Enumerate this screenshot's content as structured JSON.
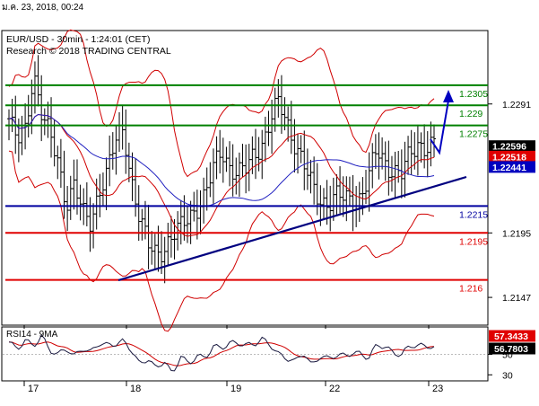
{
  "header": {
    "timestamp": "ม.ค. 23, 2018, 00:24"
  },
  "chart_data": {
    "type": "candlestick",
    "title": "EUR/USD - 30min - 1:24:01 (CET)",
    "subtitle": "Research © 2018 TRADING CENTRAL",
    "y_axis": {
      "range": [
        1.2127,
        1.2345
      ],
      "ticks": [
        "1.2291",
        "1.2195",
        "1.2147"
      ]
    },
    "x_axis": {
      "ticks": [
        "17",
        "18",
        "19",
        "22",
        "23"
      ]
    },
    "levels": [
      {
        "label": "1.2305",
        "value": 1.2305,
        "color": "#008000"
      },
      {
        "label": "1.229",
        "value": 1.229,
        "color": "#008000"
      },
      {
        "label": "1.2275",
        "value": 1.2275,
        "color": "#008000"
      },
      {
        "label": "1.2215",
        "value": 1.2215,
        "color": "#0000a0"
      },
      {
        "label": "1.2195",
        "value": 1.2195,
        "color": "#e00000"
      },
      {
        "label": "1.216",
        "value": 1.216,
        "color": "#e00000"
      }
    ],
    "price_tags": [
      {
        "label": "1.22596",
        "value": 1.22596,
        "bg": "#000000",
        "fg": "#ffffff"
      },
      {
        "label": "1.22518",
        "value": 1.22518,
        "bg": "#e00000",
        "fg": "#ffffff"
      },
      {
        "label": "1.22441",
        "value": 1.22441,
        "bg": "#0000c0",
        "fg": "#ffffff"
      }
    ],
    "trendline": {
      "from": [
        "Jan 17",
        1.2178
      ],
      "to": [
        "Jan 23",
        1.2242
      ]
    },
    "price_path": [
      1.228,
      1.2262,
      1.2272,
      1.2316,
      1.2284,
      1.2266,
      1.2248,
      1.2218,
      1.2232,
      1.2208,
      1.2202,
      1.2228,
      1.224,
      1.2262,
      1.2272,
      1.2235,
      1.2205,
      1.2185,
      1.218,
      1.2185,
      1.2192,
      1.2198,
      1.2208,
      1.2215,
      1.2222,
      1.2242,
      1.2258,
      1.2245,
      1.2238,
      1.2242,
      1.2255,
      1.2262,
      1.2278,
      1.2292,
      1.2278,
      1.2262,
      1.2246,
      1.223,
      1.222,
      1.2218,
      1.2222,
      1.222,
      1.222,
      1.2222,
      1.2236,
      1.2256,
      1.2248,
      1.2242,
      1.2238,
      1.2252,
      1.2262,
      1.226,
      1.226
    ],
    "rsi": {
      "label": "RSI14 - 9MA",
      "range": [
        25,
        75
      ],
      "ticks": [
        "50",
        "30"
      ],
      "tags": [
        {
          "label": "57.3433",
          "bg": "#e00000"
        },
        {
          "label": "56.7803",
          "bg": "#000000"
        }
      ],
      "values": [
        62,
        55,
        64,
        58,
        68,
        54,
        50,
        56,
        48,
        56,
        52,
        61,
        59,
        60,
        63,
        54,
        40,
        46,
        36,
        44,
        30,
        49,
        40,
        49,
        46,
        58,
        56,
        61,
        61,
        59,
        60,
        65,
        59,
        50,
        46,
        43,
        52,
        39,
        48,
        46,
        49,
        49,
        51,
        51,
        46,
        60,
        57,
        52,
        49,
        59,
        58,
        59,
        56
      ]
    }
  }
}
